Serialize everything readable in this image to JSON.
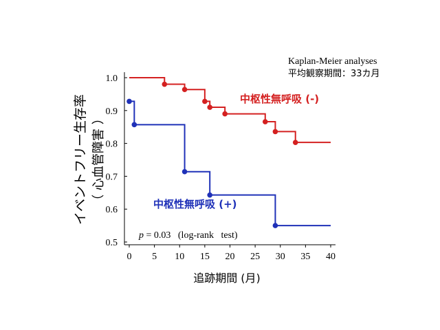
{
  "chart_data": {
    "type": "line",
    "step": true,
    "ylabel_line1": "イベントフリー生存率",
    "ylabel_line2": "（ 心血管障害 ）",
    "xlabel": "追跡期間 (月)",
    "xlim": [
      0,
      40
    ],
    "ylim": [
      0.5,
      1.0
    ],
    "x_ticks": [
      0,
      5,
      10,
      15,
      20,
      25,
      30,
      35,
      40
    ],
    "y_ticks": [
      "0.5",
      "0.6",
      "0.7",
      "0.8",
      "0.9",
      "1.0"
    ],
    "y_tick_values": [
      0.5,
      0.6,
      0.7,
      0.8,
      0.9,
      1.0
    ],
    "annotations": {
      "method": "Kaplan-Meier analyses",
      "follow_up": "平均観察期間：33カ月",
      "p_italic": "p",
      "p_rest": " = 0.03   (log-rank   test)"
    },
    "grid": false,
    "series": [
      {
        "name": "中枢性無呼吸 (-)",
        "color": "#d42020",
        "steps": [
          [
            0,
            1.0
          ],
          [
            7,
            0.98
          ],
          [
            11,
            0.964
          ],
          [
            15,
            0.928
          ],
          [
            16,
            0.91
          ],
          [
            19,
            0.89
          ],
          [
            27,
            0.866
          ],
          [
            29,
            0.836
          ],
          [
            33,
            0.803
          ],
          [
            40,
            0.803
          ]
        ],
        "markers": [
          [
            7,
            0.98
          ],
          [
            11,
            0.964
          ],
          [
            15,
            0.928
          ],
          [
            16,
            0.91
          ],
          [
            19,
            0.89
          ],
          [
            27,
            0.866
          ],
          [
            29,
            0.836
          ],
          [
            33,
            0.803
          ]
        ]
      },
      {
        "name": "中枢性無呼吸 (+)",
        "color": "#1f31b8",
        "steps": [
          [
            0,
            0.928
          ],
          [
            1,
            0.857
          ],
          [
            11,
            0.714
          ],
          [
            16,
            0.643
          ],
          [
            29,
            0.55
          ],
          [
            40,
            0.55
          ]
        ],
        "markers": [
          [
            0,
            0.928
          ],
          [
            1,
            0.857
          ],
          [
            11,
            0.714
          ],
          [
            16,
            0.643
          ],
          [
            29,
            0.55
          ]
        ]
      }
    ]
  }
}
